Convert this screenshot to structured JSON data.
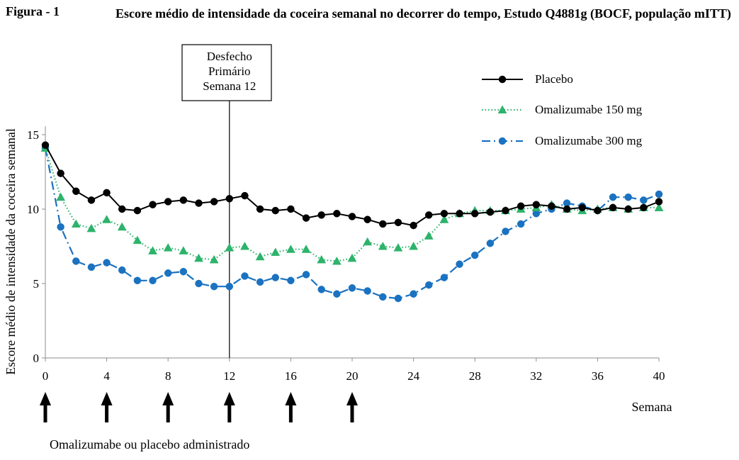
{
  "figure_label": "Figura - 1",
  "title": "Escore médio de intensidade da coceira semanal no decorrer do tempo, Estudo Q4881g (BOCF, população mITT)",
  "chart_data": {
    "type": "line",
    "title": "Escore médio de intensidade da coceira semanal no decorrer do tempo, Estudo Q4881g (BOCF, população mITT)",
    "xlabel": "Semana",
    "ylabel": "Escore médio de intensidade da coceira semanal",
    "xlim": [
      0,
      40
    ],
    "ylim": [
      0,
      15
    ],
    "xticks": [
      0,
      4,
      8,
      12,
      16,
      20,
      24,
      28,
      32,
      36,
      40
    ],
    "yticks": [
      0,
      5,
      10,
      15
    ],
    "legend_position": "top-right",
    "annotation": {
      "lines": [
        "Desfecho",
        "Primário",
        "Semana 12"
      ],
      "x": 12
    },
    "dosing_weeks": [
      0,
      4,
      8,
      12,
      16,
      20
    ],
    "dosing_label": "Omalizumabe ou placebo administrado",
    "series": [
      {
        "name": "Placebo",
        "color": "#000000",
        "marker": "circle",
        "dash": "solid",
        "x": [
          0,
          1,
          2,
          3,
          4,
          5,
          6,
          7,
          8,
          9,
          10,
          11,
          12,
          13,
          14,
          15,
          16,
          17,
          18,
          19,
          20,
          21,
          22,
          23,
          24,
          25,
          26,
          27,
          28,
          29,
          30,
          31,
          32,
          33,
          34,
          35,
          36,
          37,
          38,
          39,
          40
        ],
        "values": [
          14.3,
          12.4,
          11.2,
          10.6,
          11.1,
          10.0,
          9.9,
          10.3,
          10.5,
          10.6,
          10.4,
          10.5,
          10.7,
          10.9,
          10.0,
          9.9,
          10.0,
          9.4,
          9.6,
          9.7,
          9.5,
          9.3,
          9.0,
          9.1,
          8.9,
          9.6,
          9.7,
          9.7,
          9.7,
          9.8,
          9.9,
          10.2,
          10.3,
          10.2,
          10.0,
          10.1,
          9.9,
          10.1,
          10.0,
          10.1,
          10.5
        ]
      },
      {
        "name": "Omalizumabe 150 mg",
        "color": "#2db36b",
        "marker": "triangle",
        "dash": "dotted",
        "x": [
          0,
          1,
          2,
          3,
          4,
          5,
          6,
          7,
          8,
          9,
          10,
          11,
          12,
          13,
          14,
          15,
          16,
          17,
          18,
          19,
          20,
          21,
          22,
          23,
          24,
          25,
          26,
          27,
          28,
          29,
          30,
          31,
          32,
          33,
          34,
          35,
          36,
          37,
          38,
          39,
          40
        ],
        "values": [
          14.1,
          10.8,
          9.0,
          8.7,
          9.3,
          8.8,
          7.9,
          7.2,
          7.4,
          7.2,
          6.7,
          6.6,
          7.4,
          7.5,
          6.8,
          7.1,
          7.3,
          7.3,
          6.6,
          6.5,
          6.7,
          7.8,
          7.5,
          7.4,
          7.5,
          8.2,
          9.3,
          9.7,
          9.9,
          9.9,
          9.9,
          10.0,
          10.1,
          10.3,
          10.0,
          9.9,
          10.0,
          10.1,
          10.0,
          10.1,
          10.1
        ]
      },
      {
        "name": "Omalizumabe 300 mg",
        "color": "#1a72c0",
        "marker": "circle",
        "dash": "dashdot",
        "x": [
          0,
          1,
          2,
          3,
          4,
          5,
          6,
          7,
          8,
          9,
          10,
          11,
          12,
          13,
          14,
          15,
          16,
          17,
          18,
          19,
          20,
          21,
          22,
          23,
          24,
          25,
          26,
          27,
          28,
          29,
          30,
          31,
          32,
          33,
          34,
          35,
          36,
          37,
          38,
          39,
          40
        ],
        "values": [
          14.1,
          8.8,
          6.5,
          6.1,
          6.4,
          5.9,
          5.2,
          5.2,
          5.7,
          5.8,
          5.0,
          4.8,
          4.8,
          5.5,
          5.1,
          5.4,
          5.2,
          5.6,
          4.6,
          4.3,
          4.7,
          4.5,
          4.1,
          4.0,
          4.3,
          4.9,
          5.4,
          6.3,
          6.9,
          7.7,
          8.5,
          9.0,
          9.7,
          10.0,
          10.4,
          10.2,
          9.9,
          10.8,
          10.8,
          10.6,
          11.0
        ]
      }
    ]
  }
}
